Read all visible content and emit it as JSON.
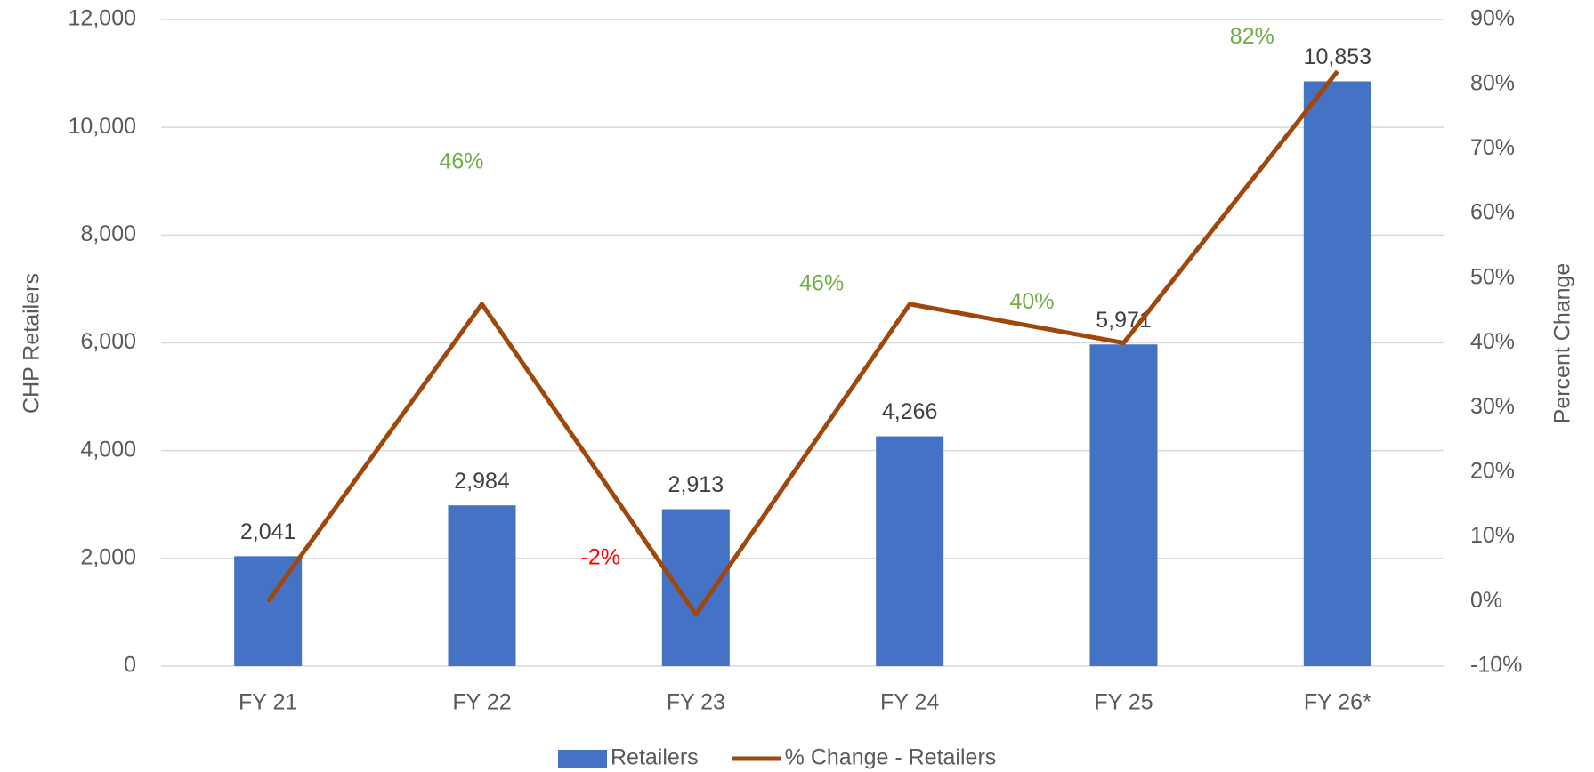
{
  "chart_data": {
    "type": "bar",
    "categories": [
      "FY 21",
      "FY 22",
      "FY 23",
      "FY 24",
      "FY 25",
      "FY 26*"
    ],
    "series": [
      {
        "name": "Retailers",
        "color": "#4472c4",
        "type": "bar",
        "values": [
          2041,
          2984,
          2913,
          4266,
          5971,
          10853
        ],
        "value_labels": [
          "2,041",
          "2,984",
          "2,913",
          "4,266",
          "5,971",
          "10,853"
        ]
      },
      {
        "name": "% Change - Retailers",
        "color": "#9e480e",
        "type": "line",
        "axis": "y2",
        "values": [
          0,
          46,
          -2,
          46,
          40,
          82
        ],
        "value_labels": [
          null,
          "46%",
          "-2%",
          "46%",
          "40%",
          "82%"
        ],
        "label_colors": [
          null,
          "#70ad47",
          "#ff0000",
          "#70ad47",
          "#70ad47",
          "#70ad47"
        ]
      }
    ],
    "ylabel": "CHP Retailers",
    "y2label": "Percent Change",
    "ylim": [
      0,
      12000
    ],
    "yticks": [
      0,
      {
        "value": 2000,
        "label": "2,000"
      },
      {
        "value": 4000,
        "label": "4,000"
      },
      {
        "value": 6000,
        "label": "6,000"
      },
      {
        "value": 8000,
        "label": "8,000"
      },
      {
        "value": 10000,
        "label": "10,000"
      },
      {
        "value": 12000,
        "label": "12,000"
      }
    ],
    "y2lim": [
      -10,
      90
    ],
    "y2ticks": [
      {
        "value": -10,
        "label": "-10%"
      },
      {
        "value": 0,
        "label": "0%"
      },
      {
        "value": 10,
        "label": "10%"
      },
      {
        "value": 20,
        "label": "20%"
      },
      {
        "value": 30,
        "label": "30%"
      },
      {
        "value": 40,
        "label": "40%"
      },
      {
        "value": 50,
        "label": "50%"
      },
      {
        "value": 60,
        "label": "60%"
      },
      {
        "value": 70,
        "label": "70%"
      },
      {
        "value": 80,
        "label": "80%"
      },
      {
        "value": 90,
        "label": "90%"
      }
    ],
    "grid": true,
    "legend": "bottom"
  }
}
